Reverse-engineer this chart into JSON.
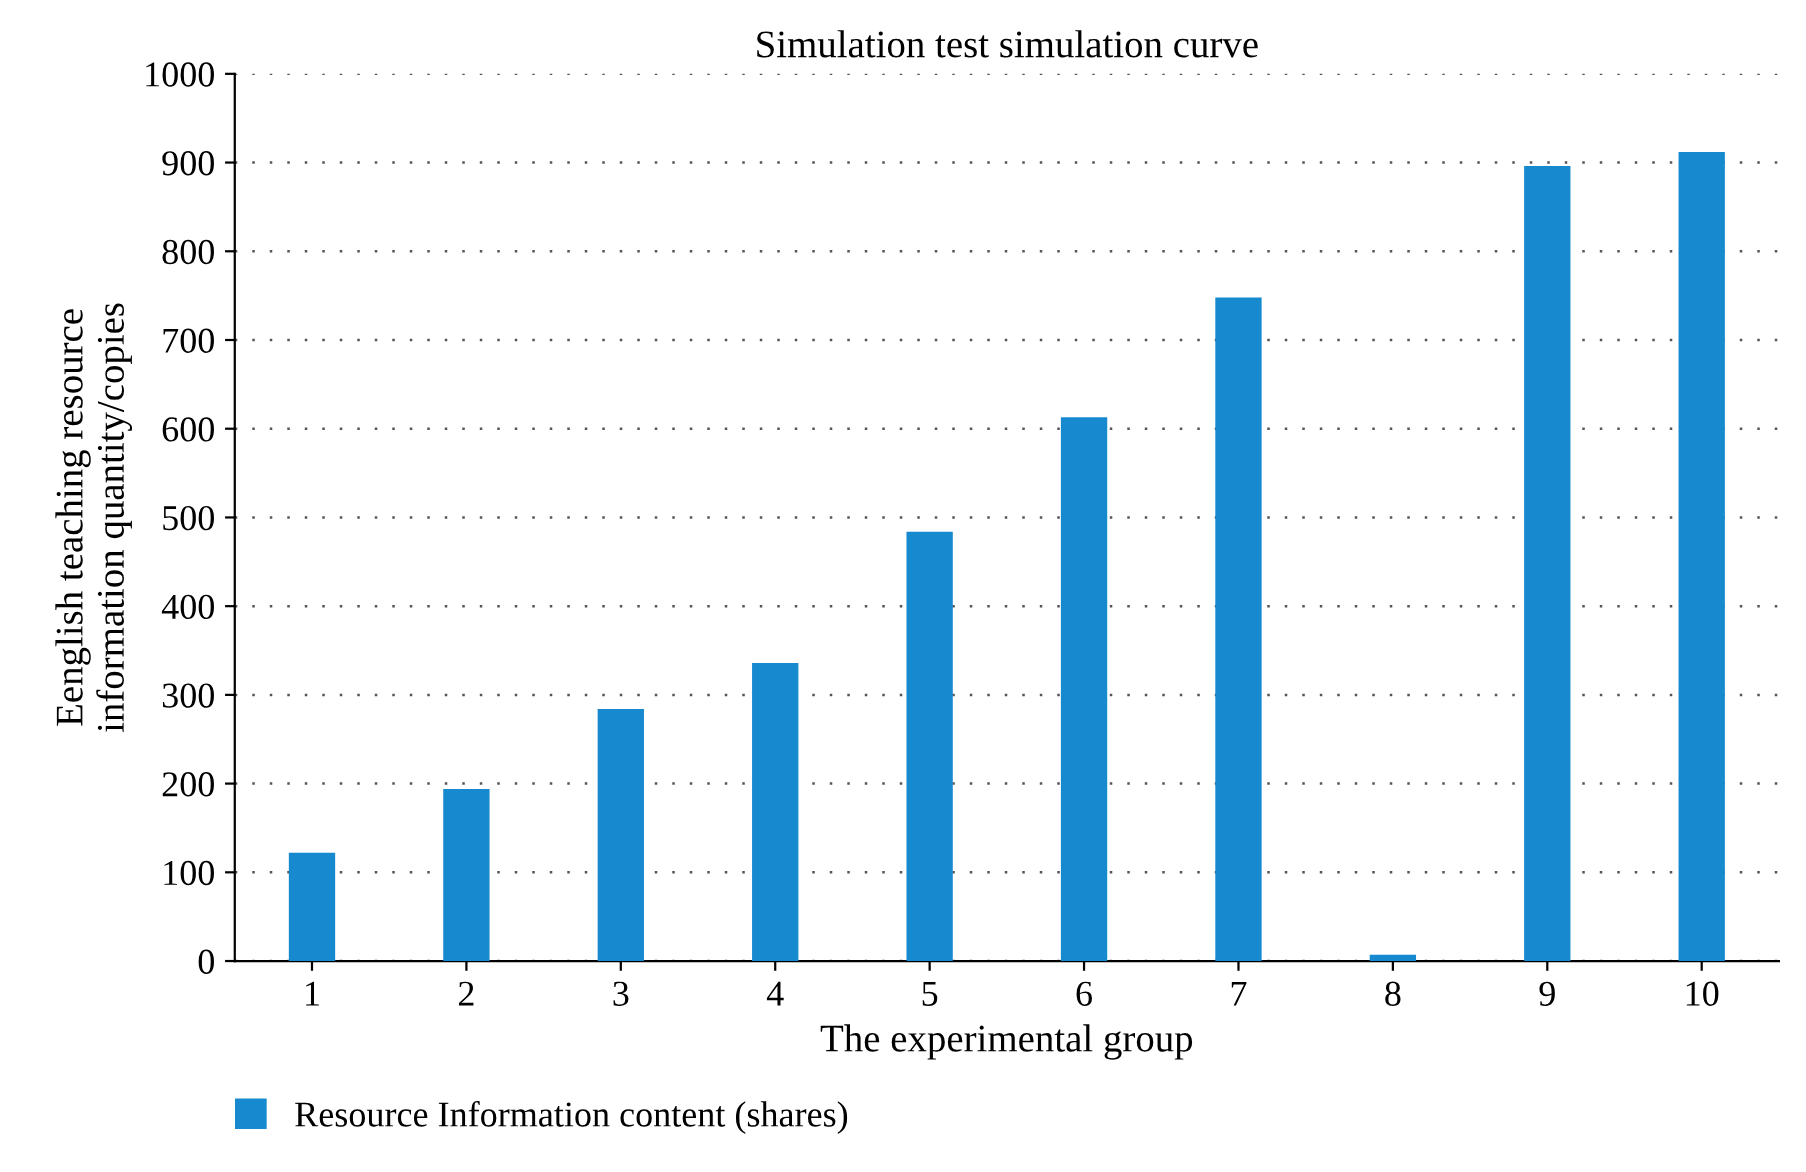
{
  "chart_data": {
    "type": "bar",
    "title": "Simulation test simulation curve",
    "xlabel": "The experimental group",
    "ylabel": "Eenglish teaching resource\ninformation quantity/copies",
    "categories": [
      "1",
      "2",
      "3",
      "4",
      "5",
      "6",
      "7",
      "8",
      "9",
      "10"
    ],
    "series": [
      {
        "name": "Resource Information content (shares)",
        "color": "#1789cf",
        "values": [
          122,
          194,
          284,
          336,
          484,
          613,
          748,
          7,
          896,
          912
        ]
      }
    ],
    "ylim": [
      0,
      1000
    ],
    "yticks": [
      0,
      100,
      200,
      300,
      400,
      500,
      600,
      700,
      800,
      900,
      1000
    ],
    "grid": "y",
    "legend": "bottom left"
  }
}
